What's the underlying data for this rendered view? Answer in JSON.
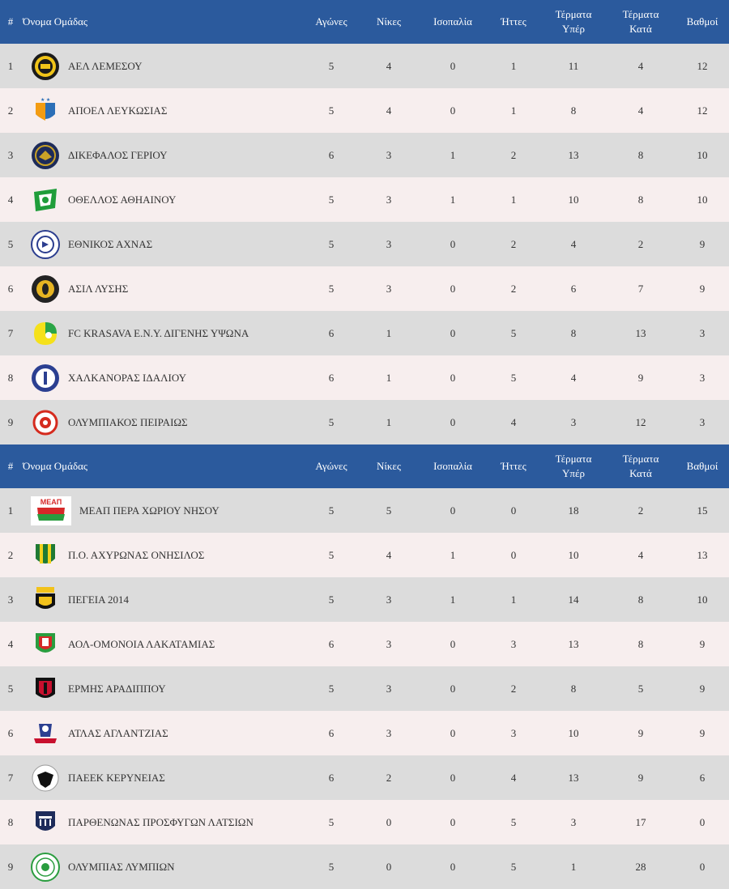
{
  "headers": {
    "pos": "#",
    "team": "Όνομα Ομάδας",
    "played": "Αγώνες",
    "wins": "Νίκες",
    "draws": "Ισοπαλία",
    "losses": "Ήττες",
    "gf_line1": "Τέρματα",
    "gf_line2": "Υπέρ",
    "ga_line1": "Τέρματα",
    "ga_line2": "Κατά",
    "points": "Βαθμοί"
  },
  "tables": [
    {
      "rows": [
        {
          "pos": "1",
          "team": "ΑΕΛ ΛΕΜΕΣΟΥ",
          "played": "5",
          "wins": "4",
          "draws": "0",
          "losses": "1",
          "gf": "11",
          "ga": "4",
          "points": "12",
          "logo": "ael-crest-icon",
          "colors": [
            "#1b1b1b",
            "#f0c419"
          ]
        },
        {
          "pos": "2",
          "team": "ΑΠΟΕΛ ΛΕΥΚΩΣΙΑΣ",
          "played": "5",
          "wins": "4",
          "draws": "0",
          "losses": "1",
          "gf": "8",
          "ga": "4",
          "points": "12",
          "logo": "apoel-crest-icon",
          "colors": [
            "#f39c12",
            "#2c6fb7"
          ]
        },
        {
          "pos": "3",
          "team": "ΔΙΚΕΦΑΛΟΣ ΓΕΡΙΟΥ",
          "played": "6",
          "wins": "3",
          "draws": "1",
          "losses": "2",
          "gf": "13",
          "ga": "8",
          "points": "10",
          "logo": "dikefalos-crest-icon",
          "colors": [
            "#1d2b5a",
            "#c9a227"
          ]
        },
        {
          "pos": "4",
          "team": "ΟΘΕΛΛΟΣ ΑΘΗΑΙΝΟΥ",
          "played": "5",
          "wins": "3",
          "draws": "1",
          "losses": "1",
          "gf": "10",
          "ga": "8",
          "points": "10",
          "logo": "othellos-crest-icon",
          "colors": [
            "#1f9d3a",
            "#ffffff"
          ]
        },
        {
          "pos": "5",
          "team": "ΕΘΝΙΚΟΣ ΑΧΝΑΣ",
          "played": "5",
          "wins": "3",
          "draws": "0",
          "losses": "2",
          "gf": "4",
          "ga": "2",
          "points": "9",
          "logo": "ethnikos-crest-icon",
          "colors": [
            "#2c3e8f",
            "#ffffff"
          ]
        },
        {
          "pos": "6",
          "team": "ΑΣΙΛ ΛΥΣΗΣ",
          "played": "5",
          "wins": "3",
          "draws": "0",
          "losses": "2",
          "gf": "6",
          "ga": "7",
          "points": "9",
          "logo": "asil-crest-icon",
          "colors": [
            "#222222",
            "#e6b422"
          ]
        },
        {
          "pos": "7",
          "team": "FC KRASAVA Ε.Ν.Υ. ΔΙΓΕΝΗΣ ΥΨΩΝΑ",
          "played": "6",
          "wins": "1",
          "draws": "0",
          "losses": "5",
          "gf": "8",
          "ga": "13",
          "points": "3",
          "logo": "krasava-crest-icon",
          "colors": [
            "#f5e11b",
            "#2aa548"
          ]
        },
        {
          "pos": "8",
          "team": "ΧΑΛΚΑΝΟΡΑΣ ΙΔΑΛΙΟΥ",
          "played": "6",
          "wins": "1",
          "draws": "0",
          "losses": "5",
          "gf": "4",
          "ga": "9",
          "points": "3",
          "logo": "chalkanoras-crest-icon",
          "colors": [
            "#2b3f91",
            "#ffffff"
          ]
        },
        {
          "pos": "9",
          "team": "ΟΛΥΜΠΙΑΚΟΣ ΠΕΙΡΑΙΩΣ",
          "played": "5",
          "wins": "1",
          "draws": "0",
          "losses": "4",
          "gf": "3",
          "ga": "12",
          "points": "3",
          "logo": "olympiakos-crest-icon",
          "colors": [
            "#d52b1e",
            "#ffffff"
          ]
        }
      ]
    },
    {
      "rows": [
        {
          "pos": "1",
          "team": "ΜΕΑΠ ΠΕΡΑ ΧΩΡΙΟΥ ΝΗΣΟΥ",
          "played": "5",
          "wins": "5",
          "draws": "0",
          "losses": "0",
          "gf": "18",
          "ga": "2",
          "points": "15",
          "logo": "meap-crest-icon",
          "logo_text": "ΜΕΑΠ",
          "colors": [
            "#d62828",
            "#2a9d3f"
          ]
        },
        {
          "pos": "2",
          "team": "Π.Ο. ΑΧΥΡΩΝΑΣ ΟΝΗΣΙΛΟΣ",
          "played": "5",
          "wins": "4",
          "draws": "1",
          "losses": "0",
          "gf": "10",
          "ga": "4",
          "points": "13",
          "logo": "achyronas-crest-icon",
          "colors": [
            "#1f7a34",
            "#f2d21b"
          ]
        },
        {
          "pos": "3",
          "team": "ΠΕΓΕΙΑ 2014",
          "played": "5",
          "wins": "3",
          "draws": "1",
          "losses": "1",
          "gf": "14",
          "ga": "8",
          "points": "10",
          "logo": "pegeia-crest-icon",
          "colors": [
            "#111111",
            "#f2c21b"
          ]
        },
        {
          "pos": "4",
          "team": "ΑΟΛ-ΟΜΟΝΟΙΑ ΛΑΚΑΤΑΜΙΑΣ",
          "played": "6",
          "wins": "3",
          "draws": "0",
          "losses": "3",
          "gf": "13",
          "ga": "8",
          "points": "9",
          "logo": "omonoia-lakatamias-crest-icon",
          "colors": [
            "#2a9d3f",
            "#d62828"
          ]
        },
        {
          "pos": "5",
          "team": "ΕΡΜΗΣ ΑΡΑΔΙΠΠΟΥ",
          "played": "5",
          "wins": "3",
          "draws": "0",
          "losses": "2",
          "gf": "8",
          "ga": "5",
          "points": "9",
          "logo": "ermis-crest-icon",
          "colors": [
            "#c8102e",
            "#111111"
          ]
        },
        {
          "pos": "6",
          "team": "ΑΤΛΑΣ ΑΓΛΑΝΤΖΙΑΣ",
          "played": "6",
          "wins": "3",
          "draws": "0",
          "losses": "3",
          "gf": "10",
          "ga": "9",
          "points": "9",
          "logo": "atlas-crest-icon",
          "colors": [
            "#2b3f91",
            "#c8102e"
          ]
        },
        {
          "pos": "7",
          "team": "ΠΑΕΕΚ ΚΕΡΥΝΕΙΑΣ",
          "played": "6",
          "wins": "2",
          "draws": "0",
          "losses": "4",
          "gf": "13",
          "ga": "9",
          "points": "6",
          "logo": "paeek-crest-icon",
          "colors": [
            "#111111",
            "#ffffff"
          ]
        },
        {
          "pos": "8",
          "team": "ΠΑΡΘΕΝΩΝΑΣ ΠΡΟΣΦΥΓΩΝ ΛΑΤΣΙΩΝ",
          "played": "5",
          "wins": "0",
          "draws": "0",
          "losses": "5",
          "gf": "3",
          "ga": "17",
          "points": "0",
          "logo": "parthenonas-crest-icon",
          "colors": [
            "#1d2b5a",
            "#ffffff"
          ]
        },
        {
          "pos": "9",
          "team": "ΟΛΥΜΠΙΑΣ ΛΥΜΠΙΩΝ",
          "played": "5",
          "wins": "0",
          "draws": "0",
          "losses": "5",
          "gf": "1",
          "ga": "28",
          "points": "0",
          "logo": "olympias-lympion-crest-icon",
          "colors": [
            "#2a9d3f",
            "#ffffff"
          ]
        }
      ]
    }
  ]
}
